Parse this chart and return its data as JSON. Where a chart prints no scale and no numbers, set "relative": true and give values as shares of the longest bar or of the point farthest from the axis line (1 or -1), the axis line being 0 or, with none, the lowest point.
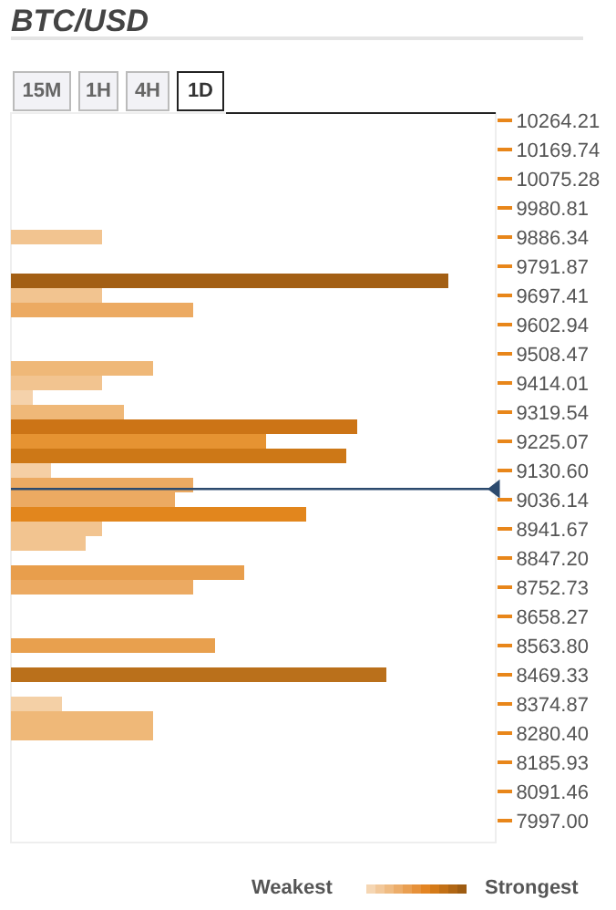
{
  "chart_data": {
    "type": "bar",
    "orientation": "horizontal",
    "relative": true,
    "title": "BTC/USD",
    "annotations": [
      "15M",
      "1H",
      "4H",
      "1D",
      "Weakest",
      "Strongest"
    ],
    "x": [
      9886.34,
      9744.64,
      9697.41,
      9650.17,
      9461.24,
      9414.01,
      9366.77,
      9319.54,
      9272.3,
      9225.07,
      9177.83,
      9130.6,
      9083.37,
      9036.14,
      8988.9,
      8941.67,
      8894.43,
      8799.96,
      8752.73,
      8563.8,
      8469.33,
      8374.87,
      8327.63,
      8280.4
    ],
    "values": [
      0.208,
      1,
      0.208,
      0.417,
      0.325,
      0.208,
      0.05,
      0.258,
      0.792,
      0.583,
      0.767,
      0.092,
      0.417,
      0.375,
      0.675,
      0.208,
      0.171,
      0.533,
      0.417,
      0.467,
      0.858,
      0.117,
      0.325,
      0.325
    ],
    "colors": [
      "#f2c490",
      "#a35f14",
      "#f2c490",
      "#ecaa62",
      "#efb878",
      "#f2c490",
      "#f5d2ab",
      "#efb878",
      "#cc7416",
      "#e69332",
      "#cd7817",
      "#f5cfa5",
      "#ecaa62",
      "#ecaa62",
      "#e2861d",
      "#f2c490",
      "#f2c490",
      "#e89e4c",
      "#ecaa62",
      "#e8a04e",
      "#ba701b",
      "#f4d0a6",
      "#efb878",
      "#efb878"
    ],
    "ylim": [
      7926.13,
      10287.83
    ],
    "yticks": [
      {
        "value": 10264.21,
        "label": "10264.21"
      },
      {
        "value": 10169.74,
        "label": "10169.74"
      },
      {
        "value": 10075.28,
        "label": "10075.28"
      },
      {
        "value": 9980.81,
        "label": "9980.81"
      },
      {
        "value": 9886.34,
        "label": "9886.34"
      },
      {
        "value": 9791.87,
        "label": "9791.87"
      },
      {
        "value": 9697.41,
        "label": "9697.41"
      },
      {
        "value": 9602.94,
        "label": "9602.94"
      },
      {
        "value": 9508.47,
        "label": "9508.47"
      },
      {
        "value": 9414.01,
        "label": "9414.01"
      },
      {
        "value": 9319.54,
        "label": "9319.54"
      },
      {
        "value": 9225.07,
        "label": "9225.07"
      },
      {
        "value": 9130.6,
        "label": "9130.60"
      },
      {
        "value": 9036.14,
        "label": "9036.14"
      },
      {
        "value": 8941.67,
        "label": "8941.67"
      },
      {
        "value": 8847.2,
        "label": "8847.20"
      },
      {
        "value": 8752.73,
        "label": "8752.73"
      },
      {
        "value": 8658.27,
        "label": "8658.27"
      },
      {
        "value": 8563.8,
        "label": "8563.80"
      },
      {
        "value": 8469.33,
        "label": "8469.33"
      },
      {
        "value": 8374.87,
        "label": "8374.87"
      },
      {
        "value": 8280.4,
        "label": "8280.40"
      },
      {
        "value": 8185.93,
        "label": "8185.93"
      },
      {
        "value": 8091.46,
        "label": "8091.46"
      },
      {
        "value": 7997.0,
        "label": "7997.00"
      }
    ],
    "ref_lines": [
      {
        "axis": "y",
        "value": 9071,
        "color": "#2c4a6e"
      }
    ],
    "grid": false,
    "legend": false
  }
}
